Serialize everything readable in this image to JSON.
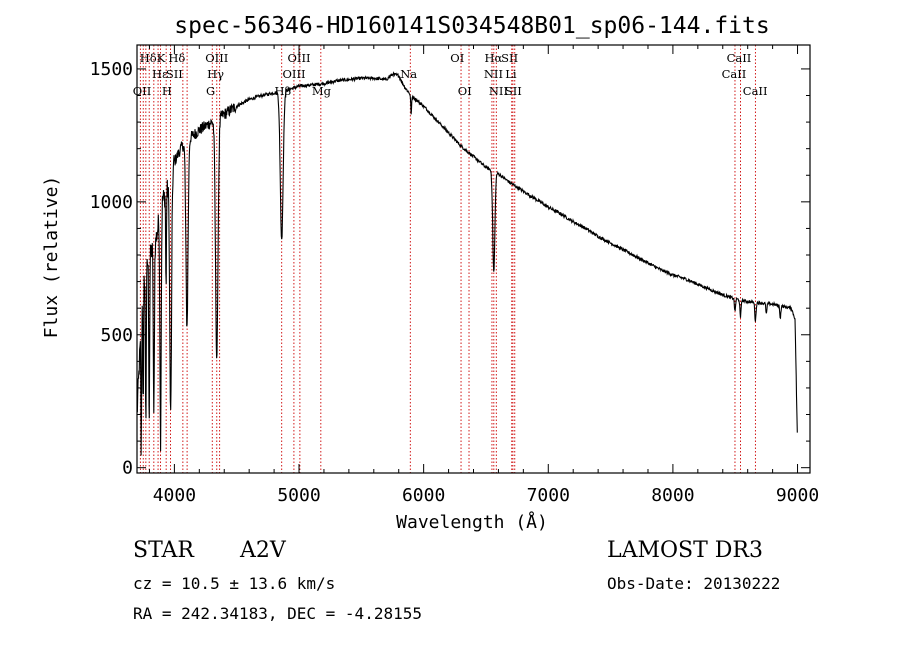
{
  "title": "spec-56346-HD160141S034548B01_sp06-144.fits",
  "info": {
    "class_label": "STAR",
    "subclass": "A2V",
    "survey": "LAMOST DR3",
    "cz": "cz = 10.5 ± 13.6 km/s",
    "obs_date": "Obs-Date: 20130222",
    "radec": "RA = 242.34183, DEC =  -4.28155"
  },
  "chart_data": {
    "type": "line",
    "title": "spec-56346-HD160141S034548B01_sp06-144.fits",
    "xlabel": "Wavelength (Å)",
    "ylabel": "Flux (relative)",
    "xlim": [
      3700,
      9100
    ],
    "ylim": [
      -20,
      1590
    ],
    "xticks": [
      4000,
      5000,
      6000,
      7000,
      8000,
      9000
    ],
    "yticks": [
      0,
      500,
      1000,
      1500
    ],
    "line_color": "#000000",
    "marker_color": "#cc0000",
    "continuum": [
      [
        3700,
        200
      ],
      [
        3750,
        700
      ],
      [
        3800,
        800
      ],
      [
        3850,
        850
      ],
      [
        3900,
        1000
      ],
      [
        3950,
        1050
      ],
      [
        4000,
        1150
      ],
      [
        4050,
        1200
      ],
      [
        4100,
        1230
      ],
      [
        4150,
        1250
      ],
      [
        4200,
        1270
      ],
      [
        4300,
        1300
      ],
      [
        4400,
        1330
      ],
      [
        4500,
        1360
      ],
      [
        4600,
        1385
      ],
      [
        4700,
        1400
      ],
      [
        4800,
        1410
      ],
      [
        4900,
        1420
      ],
      [
        5000,
        1435
      ],
      [
        5100,
        1440
      ],
      [
        5200,
        1445
      ],
      [
        5300,
        1455
      ],
      [
        5400,
        1460
      ],
      [
        5500,
        1465
      ],
      [
        5600,
        1465
      ],
      [
        5700,
        1460
      ],
      [
        5750,
        1480
      ],
      [
        5800,
        1475
      ],
      [
        5850,
        1430
      ],
      [
        5900,
        1400
      ],
      [
        6000,
        1360
      ],
      [
        6100,
        1310
      ],
      [
        6200,
        1260
      ],
      [
        6300,
        1210
      ],
      [
        6400,
        1170
      ],
      [
        6500,
        1130
      ],
      [
        6600,
        1105
      ],
      [
        6700,
        1070
      ],
      [
        6800,
        1040
      ],
      [
        6900,
        1010
      ],
      [
        7000,
        980
      ],
      [
        7100,
        955
      ],
      [
        7200,
        925
      ],
      [
        7300,
        900
      ],
      [
        7400,
        870
      ],
      [
        7500,
        845
      ],
      [
        7600,
        820
      ],
      [
        7700,
        795
      ],
      [
        7800,
        770
      ],
      [
        7900,
        745
      ],
      [
        8000,
        725
      ],
      [
        8100,
        710
      ],
      [
        8200,
        690
      ],
      [
        8300,
        670
      ],
      [
        8400,
        650
      ],
      [
        8500,
        635
      ],
      [
        8600,
        625
      ],
      [
        8700,
        620
      ],
      [
        8800,
        615
      ],
      [
        8900,
        605
      ],
      [
        8950,
        600
      ],
      [
        8980,
        560
      ],
      [
        9000,
        80
      ]
    ],
    "absorption": [
      {
        "x": 3734,
        "depth": 500,
        "width": 4
      },
      {
        "x": 3750,
        "depth": 480,
        "width": 4
      },
      {
        "x": 3771,
        "depth": 560,
        "width": 5
      },
      {
        "x": 3798,
        "depth": 620,
        "width": 5
      },
      {
        "x": 3835,
        "depth": 660,
        "width": 6
      },
      {
        "x": 3889,
        "depth": 860,
        "width": 7
      },
      {
        "x": 3933,
        "depth": 380,
        "width": 4
      },
      {
        "x": 3970,
        "depth": 900,
        "width": 10
      },
      {
        "x": 4101,
        "depth": 700,
        "width": 12
      },
      {
        "x": 4340,
        "depth": 900,
        "width": 14
      },
      {
        "x": 4861,
        "depth": 560,
        "width": 16
      },
      {
        "x": 5900,
        "depth": 70,
        "width": 5
      },
      {
        "x": 6563,
        "depth": 380,
        "width": 12
      },
      {
        "x": 8498,
        "depth": 50,
        "width": 6
      },
      {
        "x": 8542,
        "depth": 70,
        "width": 6
      },
      {
        "x": 8662,
        "depth": 70,
        "width": 7
      },
      {
        "x": 8750,
        "depth": 40,
        "width": 6
      },
      {
        "x": 8862,
        "depth": 45,
        "width": 6
      }
    ],
    "markers": [
      3727,
      3750,
      3771,
      3798,
      3835,
      3869,
      3889,
      3934,
      3969,
      4068,
      4102,
      4304,
      4340,
      4363,
      4861,
      4959,
      5007,
      5175,
      5893,
      6300,
      6364,
      6548,
      6563,
      6583,
      6707,
      6716,
      6731,
      8498,
      8542,
      8662
    ],
    "line_labels": [
      {
        "text": "Hδ",
        "x": 3790,
        "row": 0
      },
      {
        "text": "OII",
        "x": 3740,
        "row": 2
      },
      {
        "text": "K",
        "x": 3893,
        "row": 0
      },
      {
        "text": "Hε",
        "x": 3885,
        "row": 1
      },
      {
        "text": "H",
        "x": 3940,
        "row": 2
      },
      {
        "text": "Hδ",
        "x": 4020,
        "row": 0
      },
      {
        "text": "SII",
        "x": 4000,
        "row": 1
      },
      {
        "text": "OIII",
        "x": 4340,
        "row": 0
      },
      {
        "text": "Hγ",
        "x": 4330,
        "row": 1
      },
      {
        "text": "G",
        "x": 4290,
        "row": 2
      },
      {
        "text": "Hβ",
        "x": 4870,
        "row": 2
      },
      {
        "text": "OIII",
        "x": 5000,
        "row": 0
      },
      {
        "text": "OIII",
        "x": 4960,
        "row": 1
      },
      {
        "text": "Mg",
        "x": 5180,
        "row": 2
      },
      {
        "text": "Na",
        "x": 5880,
        "row": 1
      },
      {
        "text": "OI",
        "x": 6270,
        "row": 0
      },
      {
        "text": "OI",
        "x": 6330,
        "row": 2
      },
      {
        "text": "Hα",
        "x": 6560,
        "row": 0
      },
      {
        "text": "SII",
        "x": 6690,
        "row": 0
      },
      {
        "text": "NII",
        "x": 6560,
        "row": 1
      },
      {
        "text": "Li",
        "x": 6700,
        "row": 1
      },
      {
        "text": "NII",
        "x": 6600,
        "row": 2
      },
      {
        "text": "SII",
        "x": 6720,
        "row": 2
      },
      {
        "text": "CaII",
        "x": 8530,
        "row": 0
      },
      {
        "text": "CaII",
        "x": 8490,
        "row": 1
      },
      {
        "text": "CaII",
        "x": 8660,
        "row": 2
      }
    ]
  }
}
